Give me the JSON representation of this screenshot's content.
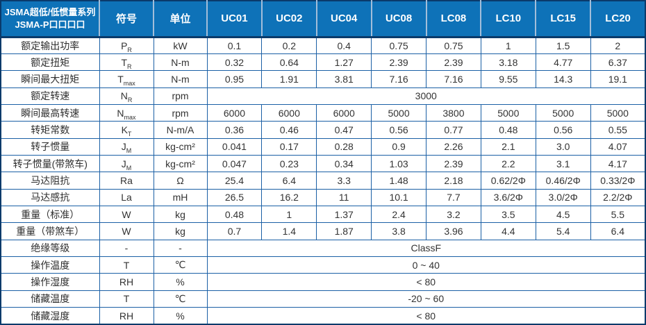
{
  "title": {
    "line1": "JSMA超低/低惯量系列",
    "line2": "JSMA-P口口口口"
  },
  "header": {
    "symbol_label": "符号",
    "unit_label": "单位",
    "models": [
      "UC01",
      "UC02",
      "UC04",
      "UC08",
      "LC08",
      "LC10",
      "LC15",
      "LC20"
    ]
  },
  "rows": [
    {
      "label": "额定输出功率",
      "symbol": {
        "base": "P",
        "sub": "R"
      },
      "unit": "kW",
      "values": [
        "0.1",
        "0.2",
        "0.4",
        "0.75",
        "0.75",
        "1",
        "1.5",
        "2"
      ]
    },
    {
      "label": "额定扭矩",
      "symbol": {
        "base": "T",
        "sub": "R"
      },
      "unit": "N-m",
      "values": [
        "0.32",
        "0.64",
        "1.27",
        "2.39",
        "2.39",
        "3.18",
        "4.77",
        "6.37"
      ]
    },
    {
      "label": "瞬间最大扭矩",
      "symbol": {
        "base": "T",
        "sub": "max"
      },
      "unit": "N-m",
      "values": [
        "0.95",
        "1.91",
        "3.81",
        "7.16",
        "7.16",
        "9.55",
        "14.3",
        "19.1"
      ]
    },
    {
      "label": "额定转速",
      "symbol": {
        "base": "N",
        "sub": "R"
      },
      "unit": "rpm",
      "merged": "3000"
    },
    {
      "label": "瞬间最高转速",
      "symbol": {
        "base": "N",
        "sub": "max"
      },
      "unit": "rpm",
      "values": [
        "6000",
        "6000",
        "6000",
        "5000",
        "3800",
        "5000",
        "5000",
        "5000"
      ]
    },
    {
      "label": "转矩常数",
      "symbol": {
        "base": "K",
        "sub": "T"
      },
      "unit": "N-m/A",
      "values": [
        "0.36",
        "0.46",
        "0.47",
        "0.56",
        "0.77",
        "0.48",
        "0.56",
        "0.55"
      ]
    },
    {
      "label": "转子惯量",
      "symbol": {
        "base": "J",
        "sub": "M"
      },
      "unit": "kg-cm²",
      "values": [
        "0.041",
        "0.17",
        "0.28",
        "0.9",
        "2.26",
        "2.1",
        "3.0",
        "4.07"
      ]
    },
    {
      "label": "转子惯量(带煞车)",
      "symbol": {
        "base": "J",
        "sub": "M"
      },
      "unit": "kg-cm²",
      "values": [
        "0.047",
        "0.23",
        "0.34",
        "1.03",
        "2.39",
        "2.2",
        "3.1",
        "4.17"
      ]
    },
    {
      "label": "马达阻抗",
      "symbol": {
        "base": "Ra",
        "sub": ""
      },
      "unit": "Ω",
      "values": [
        "25.4",
        "6.4",
        "3.3",
        "1.48",
        "2.18",
        "0.62/2Φ",
        "0.46/2Φ",
        "0.33/2Φ"
      ]
    },
    {
      "label": "马达感抗",
      "symbol": {
        "base": "La",
        "sub": ""
      },
      "unit": "mH",
      "values": [
        "26.5",
        "16.2",
        "11",
        "10.1",
        "7.7",
        "3.6/2Φ",
        "3.0/2Φ",
        "2.2/2Φ"
      ]
    },
    {
      "label": "重量（标准）",
      "symbol": {
        "base": "W",
        "sub": ""
      },
      "unit": "kg",
      "values": [
        "0.48",
        "1",
        "1.37",
        "2.4",
        "3.2",
        "3.5",
        "4.5",
        "5.5"
      ]
    },
    {
      "label": "重量（带煞车）",
      "symbol": {
        "base": "W",
        "sub": ""
      },
      "unit": "kg",
      "values": [
        "0.7",
        "1.4",
        "1.87",
        "3.8",
        "3.96",
        "4.4",
        "5.4",
        "6.4"
      ]
    },
    {
      "label": "绝缘等级",
      "symbol": {
        "base": "-",
        "sub": ""
      },
      "unit": "-",
      "merged": "ClassF"
    },
    {
      "label": "操作温度",
      "symbol": {
        "base": "T",
        "sub": ""
      },
      "unit": "℃",
      "merged": "0 ~ 40"
    },
    {
      "label": "操作湿度",
      "symbol": {
        "base": "RH",
        "sub": ""
      },
      "unit": "%",
      "merged": "< 80"
    },
    {
      "label": "储藏温度",
      "symbol": {
        "base": "T",
        "sub": ""
      },
      "unit": "℃",
      "merged": "-20 ~ 60"
    },
    {
      "label": "储藏湿度",
      "symbol": {
        "base": "RH",
        "sub": ""
      },
      "unit": "%",
      "merged": "< 80"
    }
  ],
  "colors": {
    "header_bg": "#0E72B8",
    "header_text": "#FFFFFF",
    "header_divider": "#A3BEDA",
    "border_inner": "#1A5FA5",
    "border_outer": "#0A3A6B",
    "body_text": "#333333"
  }
}
